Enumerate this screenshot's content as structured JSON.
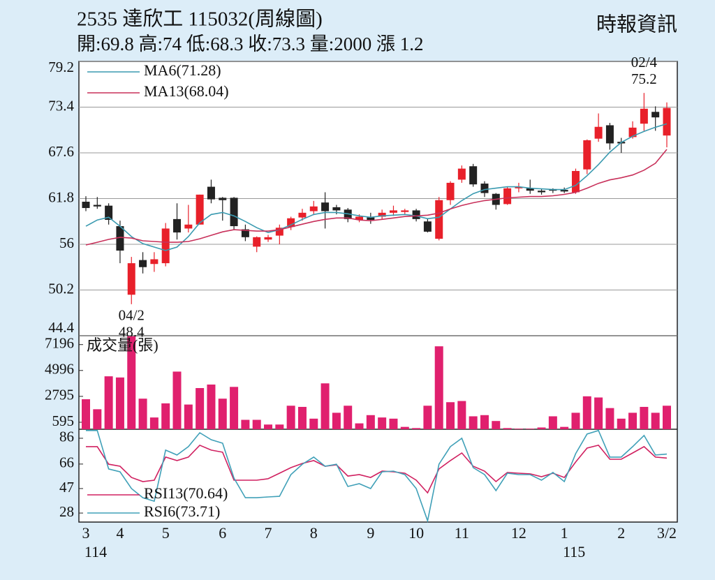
{
  "chart_data": [
    {
      "type": "candlestick",
      "title": "2535  達欣工 115032(周線圖)",
      "subtitle": "開:69.8 高:74 低:68.3 收:73.3 量:2000 漲 1.2",
      "source": "時報資訊",
      "up_color": "#e8202a",
      "down_color": "#222222",
      "legend": "top-left",
      "grid": true,
      "open": [
        61.4,
        61.0,
        60.9,
        58.3,
        49.6,
        54.0,
        53.5,
        53.6,
        59.2,
        58.0,
        58.5,
        63.3,
        61.9,
        61.9,
        57.9,
        55.7,
        56.6,
        57.1,
        58.2,
        59.4,
        60.2,
        61.3,
        60.7,
        60.4,
        59.1,
        59.4,
        59.5,
        60.0,
        60.1,
        60.3,
        58.9,
        56.7,
        61.6,
        64.2,
        65.9,
        63.7,
        62.4,
        61.1,
        63.1,
        63.1,
        62.8,
        63.0,
        62.9,
        62.6,
        65.5,
        69.4,
        71.1,
        69.0,
        69.6,
        71.3,
        72.8,
        69.8
      ],
      "high": [
        62.1,
        62.0,
        61.2,
        59.0,
        54.4,
        55.0,
        55.0,
        58.7,
        61.2,
        61.0,
        62.3,
        64.2,
        62.0,
        62.0,
        58.5,
        57.0,
        57.2,
        58.5,
        59.5,
        60.5,
        61.5,
        62.6,
        61.0,
        60.6,
        59.8,
        60.0,
        60.4,
        60.9,
        60.5,
        60.5,
        59.3,
        62.0,
        64.0,
        66.0,
        66.2,
        64.0,
        62.5,
        63.3,
        63.8,
        64.2,
        63.0,
        63.1,
        63.2,
        65.6,
        69.3,
        72.6,
        71.4,
        69.5,
        71.6,
        75.2,
        73.5,
        74
      ],
      "low": [
        60.2,
        60.5,
        58.5,
        53.6,
        48.4,
        52.3,
        52.5,
        53.2,
        56.6,
        57.5,
        58.5,
        61.2,
        59.0,
        57.8,
        56.4,
        55.0,
        56.3,
        56.0,
        57.8,
        59.0,
        59.7,
        58.0,
        59.8,
        58.8,
        58.8,
        58.6,
        59.2,
        59.6,
        59.8,
        58.9,
        57.5,
        56.5,
        61.0,
        63.8,
        63.3,
        62.0,
        60.4,
        61.0,
        62.6,
        62.4,
        62.3,
        62.5,
        62.5,
        62.4,
        64.9,
        69.0,
        68.0,
        67.6,
        69.4,
        70.4,
        70.4,
        68.3
      ],
      "close": [
        60.6,
        60.8,
        59.1,
        55.2,
        53.6,
        53.1,
        54.1,
        58.0,
        57.5,
        58.5,
        62.3,
        61.7,
        61.6,
        58.3,
        56.9,
        56.9,
        56.9,
        58.1,
        59.3,
        60.0,
        60.8,
        60.2,
        60.3,
        59.2,
        59.5,
        59.1,
        60.0,
        60.3,
        60.3,
        59.2,
        57.6,
        61.6,
        63.8,
        65.6,
        63.6,
        62.5,
        61.0,
        63.1,
        63.3,
        62.8,
        62.6,
        62.8,
        62.7,
        65.3,
        69.2,
        70.9,
        68.8,
        68.8,
        70.8,
        73.2,
        72.1,
        73.3
      ],
      "series": [
        {
          "name": "MA6(71.28)",
          "color": "#3a9ab0",
          "values": [
            58.29,
            59.08,
            59.43,
            58.29,
            56.97,
            56.09,
            55.65,
            55.21,
            55.65,
            56.97,
            58.73,
            59.78,
            60.04,
            59.6,
            58.9,
            58.11,
            57.49,
            57.85,
            58.46,
            59.16,
            59.78,
            60.04,
            60.04,
            59.87,
            59.6,
            59.43,
            59.6,
            59.69,
            59.78,
            59.6,
            59.25,
            59.43,
            60.48,
            61.54,
            62.42,
            62.94,
            63.12,
            63.3,
            63.3,
            63.12,
            63.03,
            62.94,
            62.94,
            63.47,
            64.7,
            66.11,
            67.69,
            68.92,
            69.71,
            70.32,
            70.85,
            71.28
          ]
        },
        {
          "name": "MA13(68.04)",
          "color": "#c8305a",
          "values": [
            55.91,
            56.26,
            56.62,
            56.88,
            56.79,
            56.44,
            56.35,
            56.26,
            56.26,
            56.35,
            56.7,
            57.14,
            57.58,
            57.85,
            57.76,
            57.67,
            57.67,
            57.85,
            58.2,
            58.55,
            58.9,
            59.16,
            59.34,
            59.34,
            59.08,
            58.99,
            59.16,
            59.34,
            59.52,
            59.6,
            59.69,
            59.96,
            60.48,
            60.92,
            61.27,
            61.54,
            61.71,
            61.89,
            61.98,
            62.06,
            62.06,
            62.15,
            62.33,
            62.59,
            63.12,
            63.73,
            64.17,
            64.44,
            64.79,
            65.4,
            66.28,
            68.04
          ]
        }
      ],
      "annotations": [
        {
          "label": "04/2",
          "value": 48.4
        },
        {
          "label": "02/4",
          "value": 75.2
        }
      ],
      "ylim": [
        44.4,
        79.2
      ],
      "yticks": [
        44.4,
        50.2,
        56.0,
        61.8,
        67.6,
        73.4,
        79.2
      ]
    },
    {
      "type": "bar",
      "title": "成交量(張)",
      "color": "#e0206e",
      "values": [
        2550,
        1700,
        4500,
        4400,
        7900,
        2600,
        1000,
        2200,
        4900,
        2100,
        3500,
        3800,
        2600,
        3600,
        800,
        800,
        400,
        400,
        2000,
        1900,
        900,
        3900,
        1400,
        2000,
        500,
        1200,
        1000,
        900,
        200,
        100,
        2000,
        7050,
        2300,
        2400,
        1100,
        1200,
        700,
        100,
        50,
        50,
        150,
        1100,
        200,
        1400,
        2800,
        2700,
        1800,
        900,
        1400,
        1900,
        1400,
        2000
      ],
      "ylim": [
        0,
        7950
      ],
      "yticks": [
        595,
        2795,
        4996,
        7196
      ]
    },
    {
      "type": "line",
      "legend": "bottom-left",
      "categories": [
        "3",
        null,
        null,
        "4",
        null,
        null,
        null,
        "5",
        null,
        null,
        null,
        null,
        "6",
        null,
        null,
        null,
        "7",
        null,
        null,
        null,
        "8",
        null,
        null,
        null,
        null,
        "9",
        null,
        null,
        null,
        "10",
        null,
        null,
        null,
        "11",
        null,
        null,
        null,
        null,
        "12",
        null,
        null,
        null,
        "1",
        null,
        null,
        null,
        null,
        "2",
        null,
        null,
        null,
        "3/2"
      ],
      "year_labels": [
        "114",
        null,
        null,
        null,
        null,
        null,
        null,
        null,
        null,
        null,
        null,
        null,
        null,
        null,
        null,
        null,
        null,
        null,
        null,
        null,
        null,
        null,
        null,
        null,
        null,
        null,
        null,
        null,
        null,
        null,
        null,
        null,
        null,
        null,
        null,
        null,
        null,
        null,
        null,
        null,
        null,
        null,
        "115",
        null,
        null,
        null,
        null,
        null,
        null,
        null,
        null,
        null
      ],
      "series": [
        {
          "name": "RSI13(70.64)",
          "color": "#d02060",
          "values": [
            79.5,
            79.5,
            65.9,
            64.3,
            55.6,
            52.4,
            53.5,
            71.4,
            68.7,
            71.4,
            80.6,
            76.8,
            75.2,
            53.5,
            53.5,
            53.5,
            54.6,
            58.9,
            63.2,
            66.5,
            68.7,
            64.3,
            65.4,
            56.7,
            57.8,
            55.6,
            60.5,
            60.0,
            58.9,
            53.5,
            43.7,
            62.2,
            68.7,
            74.6,
            64.3,
            60.5,
            52.4,
            59.5,
            58.9,
            58.4,
            56.2,
            58.9,
            55.6,
            67.6,
            78.4,
            80.6,
            69.7,
            69.7,
            74.6,
            79.5,
            71.4,
            70.64
          ]
        },
        {
          "name": "RSI6(73.71)",
          "color": "#40a0b8",
          "values": [
            92.0,
            92.0,
            62.2,
            60.0,
            47.0,
            39.9,
            37.2,
            76.8,
            73.0,
            79.5,
            90.3,
            84.9,
            82.2,
            55.1,
            39.9,
            39.9,
            40.5,
            41.0,
            57.8,
            65.9,
            71.4,
            64.3,
            65.9,
            48.6,
            50.8,
            47.0,
            60.0,
            60.5,
            57.8,
            47.0,
            22.0,
            65.9,
            79.5,
            86.0,
            63.2,
            57.8,
            45.4,
            58.9,
            57.8,
            57.8,
            53.5,
            59.5,
            52.4,
            74.1,
            89.3,
            92.0,
            71.4,
            71.4,
            79.5,
            88.2,
            73.0,
            73.71
          ]
        }
      ],
      "ylim": [
        21,
        93
      ],
      "yticks": [
        28,
        47,
        66,
        86
      ]
    }
  ]
}
